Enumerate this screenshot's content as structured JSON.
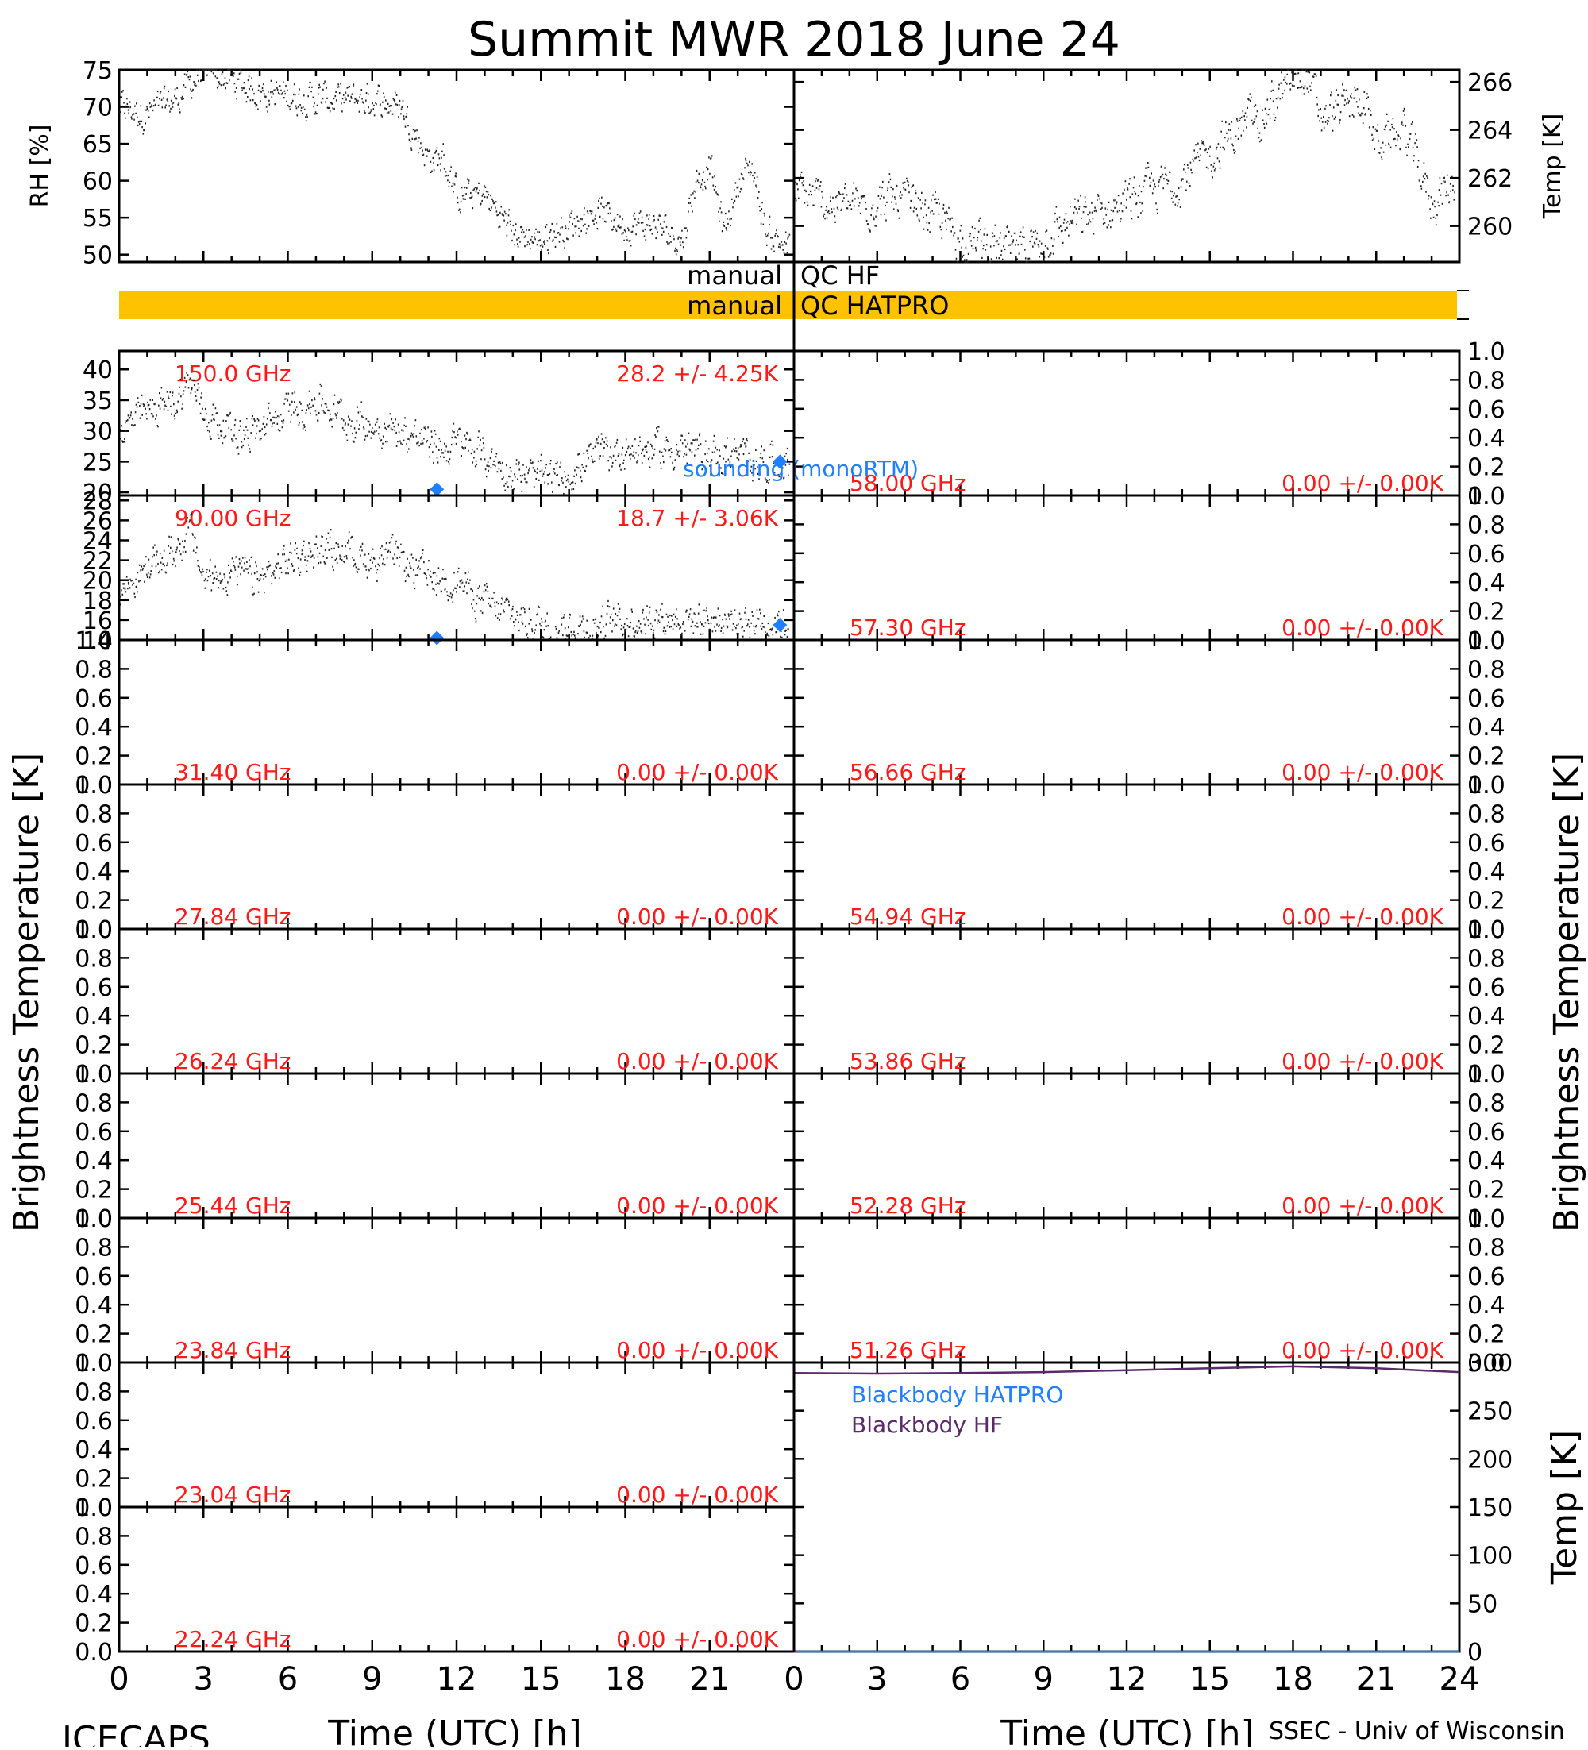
{
  "title": "Summit MWR 2018 June 24",
  "footer_left": "ICECAPS",
  "footer_right": "SSEC - Univ of Wisconsin",
  "colors": {
    "red_label": "#ff1a1a",
    "blue": "#1f7fff",
    "purple": "#5b2a6b",
    "qc_bar": "#ffc200",
    "axis": "#000000"
  },
  "chart_data": [
    {
      "id": "rh",
      "type": "scatter",
      "ylabel": "RH [%]",
      "ylim": [
        49,
        75
      ],
      "yticks": [
        50,
        55,
        60,
        65,
        70,
        75
      ],
      "xlim": [
        0,
        24
      ],
      "series": [
        {
          "anchors_x": [
            0,
            1,
            2,
            3,
            5,
            7,
            9,
            10,
            11,
            11.5,
            12,
            13,
            14,
            15,
            16,
            17,
            18,
            19,
            20,
            20.5,
            21,
            21.5,
            22,
            22.5,
            23,
            23.8
          ],
          "anchors_y": [
            70,
            69,
            71,
            75,
            72,
            71,
            71,
            70,
            63,
            63,
            58,
            58,
            53,
            52,
            54,
            56,
            54,
            54,
            52,
            60,
            62,
            53,
            60,
            62,
            53,
            51
          ],
          "noise": 2.2
        }
      ]
    },
    {
      "id": "temp",
      "type": "scatter",
      "ylabel": "Temp [K]",
      "ylim": [
        258.5,
        266.5
      ],
      "yticks": [
        260,
        262,
        264,
        266
      ],
      "xlim": [
        0,
        24
      ],
      "series": [
        {
          "anchors_x": [
            0,
            1,
            2,
            3,
            4,
            5,
            6,
            7,
            8,
            9,
            10,
            11,
            12,
            13,
            14,
            15,
            16,
            17,
            18,
            18.5,
            19,
            20,
            20.5,
            21,
            22,
            23,
            24
          ],
          "anchors_y": [
            261.5,
            261,
            260.8,
            261,
            261,
            260.5,
            259.5,
            259.2,
            258.8,
            259.5,
            260.2,
            260.5,
            261.0,
            261.5,
            262.0,
            263,
            264.0,
            264.8,
            266,
            266.3,
            264.5,
            265,
            265.3,
            263.5,
            264.0,
            261.0,
            262.0
          ],
          "noise": 0.9
        }
      ]
    },
    {
      "id": "ch_150",
      "type": "scatter",
      "freq": "150.0 GHz",
      "stat": "28.2 +/-  4.25K",
      "ylim": [
        19.5,
        43
      ],
      "yticks": [
        20,
        25,
        30,
        35,
        40
      ],
      "xlim": [
        0,
        24
      ],
      "series": [
        {
          "anchors_x": [
            0,
            1,
            2,
            2.5,
            3,
            4,
            5,
            6,
            7,
            8,
            9,
            10,
            11,
            11.5,
            12,
            13,
            14,
            15,
            16,
            17,
            18,
            19,
            20,
            21,
            22,
            23,
            23.8
          ],
          "anchors_y": [
            30,
            33,
            35,
            38,
            33,
            30,
            30,
            33,
            35,
            32,
            31,
            30,
            28,
            27,
            28,
            26,
            23,
            22,
            23,
            26,
            27,
            27,
            27,
            26,
            26,
            25,
            25
          ],
          "noise": 3.0
        }
      ],
      "sounding": [
        {
          "x": 11.3,
          "y": 20.5
        },
        {
          "x": 23.5,
          "y": 25
        }
      ]
    },
    {
      "id": "ch_090",
      "type": "scatter",
      "freq": "90.00 GHz",
      "stat": "18.7 +/-  3.06K",
      "ylim": [
        14,
        28.5
      ],
      "yticks": [
        14,
        16,
        18,
        20,
        22,
        24,
        26,
        28
      ],
      "xlim": [
        0,
        24
      ],
      "series": [
        {
          "anchors_x": [
            0,
            1,
            2,
            2.5,
            3,
            4,
            5,
            6,
            7,
            8,
            9,
            10,
            11,
            12,
            13,
            14,
            15,
            16,
            17,
            18,
            19,
            20,
            21,
            22,
            23,
            23.8
          ],
          "anchors_y": [
            19,
            21,
            23,
            25,
            20,
            21,
            20,
            22,
            23,
            23,
            22,
            22,
            20,
            20,
            17.5,
            16.5,
            15.5,
            15.3,
            15.5,
            16,
            16.3,
            16.2,
            16,
            16,
            16,
            15.5
          ],
          "noise": 1.8
        }
      ],
      "sounding": [
        {
          "x": 11.3,
          "y": 14.2
        },
        {
          "x": 23.5,
          "y": 15.5
        }
      ]
    },
    {
      "id": "ch_314",
      "type": "scatter",
      "freq": "31.40 GHz",
      "stat": "0.00 +/-  0.00K",
      "ylim": [
        0,
        1
      ],
      "yticks": [
        0.0,
        0.2,
        0.4,
        0.6,
        0.8,
        1.0
      ],
      "series": []
    },
    {
      "id": "ch_278",
      "type": "scatter",
      "freq": "27.84 GHz",
      "stat": "0.00 +/-  0.00K",
      "ylim": [
        0,
        1
      ],
      "yticks": [
        0.0,
        0.2,
        0.4,
        0.6,
        0.8,
        1.0
      ],
      "series": []
    },
    {
      "id": "ch_262",
      "type": "scatter",
      "freq": "26.24 GHz",
      "stat": "0.00 +/-  0.00K",
      "ylim": [
        0,
        1
      ],
      "yticks": [
        0.0,
        0.2,
        0.4,
        0.6,
        0.8,
        1.0
      ],
      "series": []
    },
    {
      "id": "ch_254",
      "type": "scatter",
      "freq": "25.44 GHz",
      "stat": "0.00 +/-  0.00K",
      "ylim": [
        0,
        1
      ],
      "yticks": [
        0.0,
        0.2,
        0.4,
        0.6,
        0.8,
        1.0
      ],
      "series": []
    },
    {
      "id": "ch_238",
      "type": "scatter",
      "freq": "23.84 GHz",
      "stat": "0.00 +/-  0.00K",
      "ylim": [
        0,
        1
      ],
      "yticks": [
        0.0,
        0.2,
        0.4,
        0.6,
        0.8,
        1.0
      ],
      "series": []
    },
    {
      "id": "ch_230",
      "type": "scatter",
      "freq": "23.04 GHz",
      "stat": "0.00 +/-  0.00K",
      "ylim": [
        0,
        1
      ],
      "yticks": [
        0.0,
        0.2,
        0.4,
        0.6,
        0.8,
        1.0
      ],
      "series": []
    },
    {
      "id": "ch_222",
      "type": "scatter",
      "freq": "22.24 GHz",
      "stat": "0.00 +/-  0.00K",
      "ylim": [
        0,
        1
      ],
      "yticks": [
        0.0,
        0.2,
        0.4,
        0.6,
        0.8,
        1.0
      ],
      "series": []
    },
    {
      "id": "ch_580",
      "type": "scatter",
      "freq": "58.00 GHz",
      "stat": "0.00 +/-  0.00K",
      "ylim": [
        0,
        1
      ],
      "yticks": [
        0.0,
        0.2,
        0.4,
        0.6,
        0.8,
        1.0
      ],
      "series": []
    },
    {
      "id": "ch_573",
      "type": "scatter",
      "freq": "57.30 GHz",
      "stat": "0.00 +/-  0.00K",
      "ylim": [
        0,
        1
      ],
      "yticks": [
        0.0,
        0.2,
        0.4,
        0.6,
        0.8,
        1.0
      ],
      "series": []
    },
    {
      "id": "ch_566",
      "type": "scatter",
      "freq": "56.66 GHz",
      "stat": "0.00 +/-  0.00K",
      "ylim": [
        0,
        1
      ],
      "yticks": [
        0.0,
        0.2,
        0.4,
        0.6,
        0.8,
        1.0
      ],
      "series": []
    },
    {
      "id": "ch_549",
      "type": "scatter",
      "freq": "54.94 GHz",
      "stat": "0.00 +/-  0.00K",
      "ylim": [
        0,
        1
      ],
      "yticks": [
        0.0,
        0.2,
        0.4,
        0.6,
        0.8,
        1.0
      ],
      "series": []
    },
    {
      "id": "ch_538",
      "type": "scatter",
      "freq": "53.86 GHz",
      "stat": "0.00 +/-  0.00K",
      "ylim": [
        0,
        1
      ],
      "yticks": [
        0.0,
        0.2,
        0.4,
        0.6,
        0.8,
        1.0
      ],
      "series": []
    },
    {
      "id": "ch_522",
      "type": "scatter",
      "freq": "52.28 GHz",
      "stat": "0.00 +/-  0.00K",
      "ylim": [
        0,
        1
      ],
      "yticks": [
        0.0,
        0.2,
        0.4,
        0.6,
        0.8,
        1.0
      ],
      "series": []
    },
    {
      "id": "ch_512",
      "type": "scatter",
      "freq": "51.26 GHz",
      "stat": "0.00 +/-  0.00K",
      "ylim": [
        0,
        1
      ],
      "yticks": [
        0.0,
        0.2,
        0.4,
        0.6,
        0.8,
        1.0
      ],
      "series": []
    },
    {
      "id": "blackbody",
      "type": "line",
      "ylabel": "Temp [K]",
      "ylim": [
        0,
        300
      ],
      "yticks": [
        0,
        50,
        100,
        150,
        200,
        250,
        300
      ],
      "xlim": [
        0,
        24
      ],
      "series": [
        {
          "name": "Blackbody HATPRO",
          "x": [
            0,
            24
          ],
          "y": [
            0,
            0
          ]
        },
        {
          "name": "Blackbody HF",
          "x": [
            0,
            3,
            6,
            9,
            12,
            15,
            18,
            21,
            24
          ],
          "y": [
            289,
            288.5,
            289,
            290,
            292,
            294,
            296,
            294,
            290
          ]
        }
      ]
    }
  ],
  "qc": {
    "hf_left": "manual",
    "hf_right": "QC HF",
    "hatpro_left": "manual",
    "hatpro_right": "QC HATPRO"
  },
  "sounding_label": "sounding (monoRTM)",
  "left_ylabel": "Brightness Temperature [K]",
  "right_ylabel": "Brightness Temperature [K]",
  "xlabel_left": "Time (UTC) [h]",
  "xlabel_right": "Time (UTC) [h]",
  "xticks_left": [
    0,
    3,
    6,
    9,
    12,
    15,
    18,
    21
  ],
  "xticks_right": [
    0,
    3,
    6,
    9,
    12,
    15,
    18,
    21,
    24
  ]
}
